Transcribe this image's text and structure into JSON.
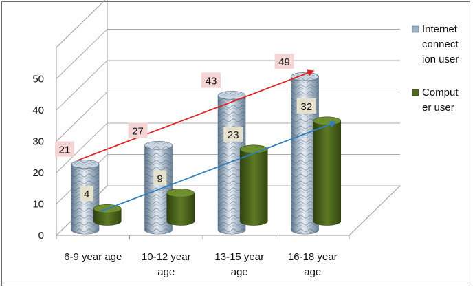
{
  "chart_data": {
    "type": "bar",
    "categories": [
      [
        "6-9 year age"
      ],
      [
        "10-12 year",
        "age"
      ],
      [
        "13-15 year",
        "age"
      ],
      [
        "16-18 year",
        "age"
      ]
    ],
    "series": [
      {
        "name_lines": [
          "Internet",
          "connect",
          "ion user"
        ],
        "values": [
          21,
          27,
          43,
          49
        ],
        "color": "#9fb3c8",
        "label_bg": "#f4d4d4",
        "trend_color": "#e02020"
      },
      {
        "name_lines": [
          "Comput",
          "er user"
        ],
        "values": [
          4,
          9,
          23,
          32
        ],
        "color": "#4f6a1e",
        "label_bg": "#e6e1cc",
        "trend_color": "#2e7fc0"
      }
    ],
    "yticks": [
      0,
      10,
      20,
      30,
      40,
      50
    ],
    "ylim": [
      0,
      60
    ],
    "grid": true,
    "legend_position": "right",
    "title": "",
    "xlabel": "",
    "ylabel": ""
  }
}
